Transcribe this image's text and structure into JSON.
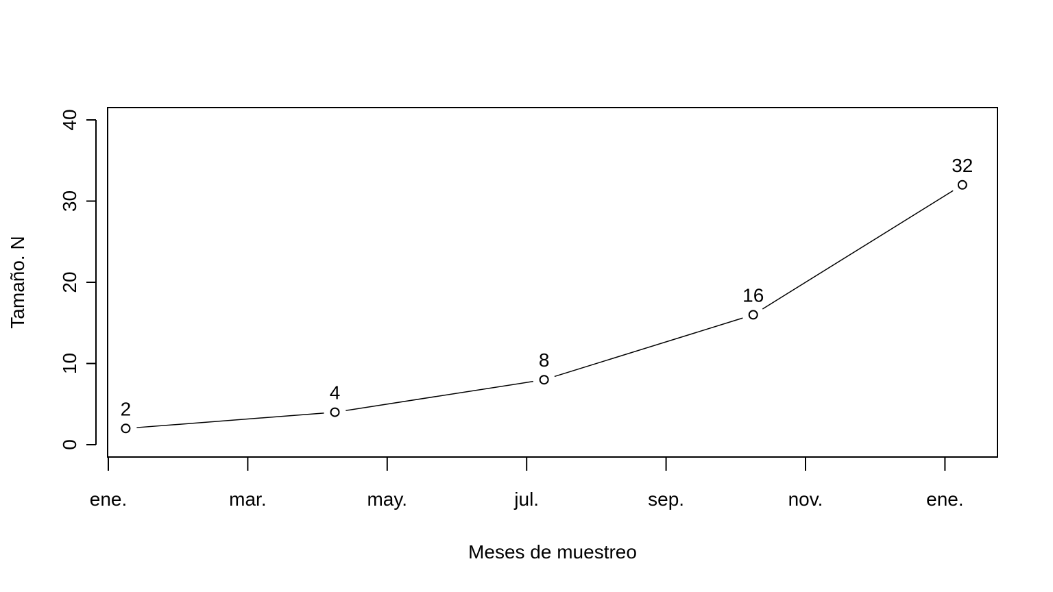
{
  "chart_data": {
    "type": "line",
    "title": "",
    "xlabel": "Meses de muestreo",
    "ylabel": "Tamaño. N",
    "x_ticks": [
      "ene.",
      "mar.",
      "may.",
      "jul.",
      "sep.",
      "nov.",
      "ene."
    ],
    "y_ticks": [
      0,
      10,
      20,
      30,
      40
    ],
    "ylim": [
      0,
      40
    ],
    "series": [
      {
        "x": [
          "ene.",
          "abr.",
          "jul.",
          "oct.",
          "ene."
        ],
        "values": [
          2,
          4,
          8,
          16,
          32
        ],
        "data_labels": [
          "2",
          "4",
          "8",
          "16",
          "32"
        ]
      }
    ],
    "markers": "open-circle",
    "grid": false,
    "legend": "none"
  }
}
